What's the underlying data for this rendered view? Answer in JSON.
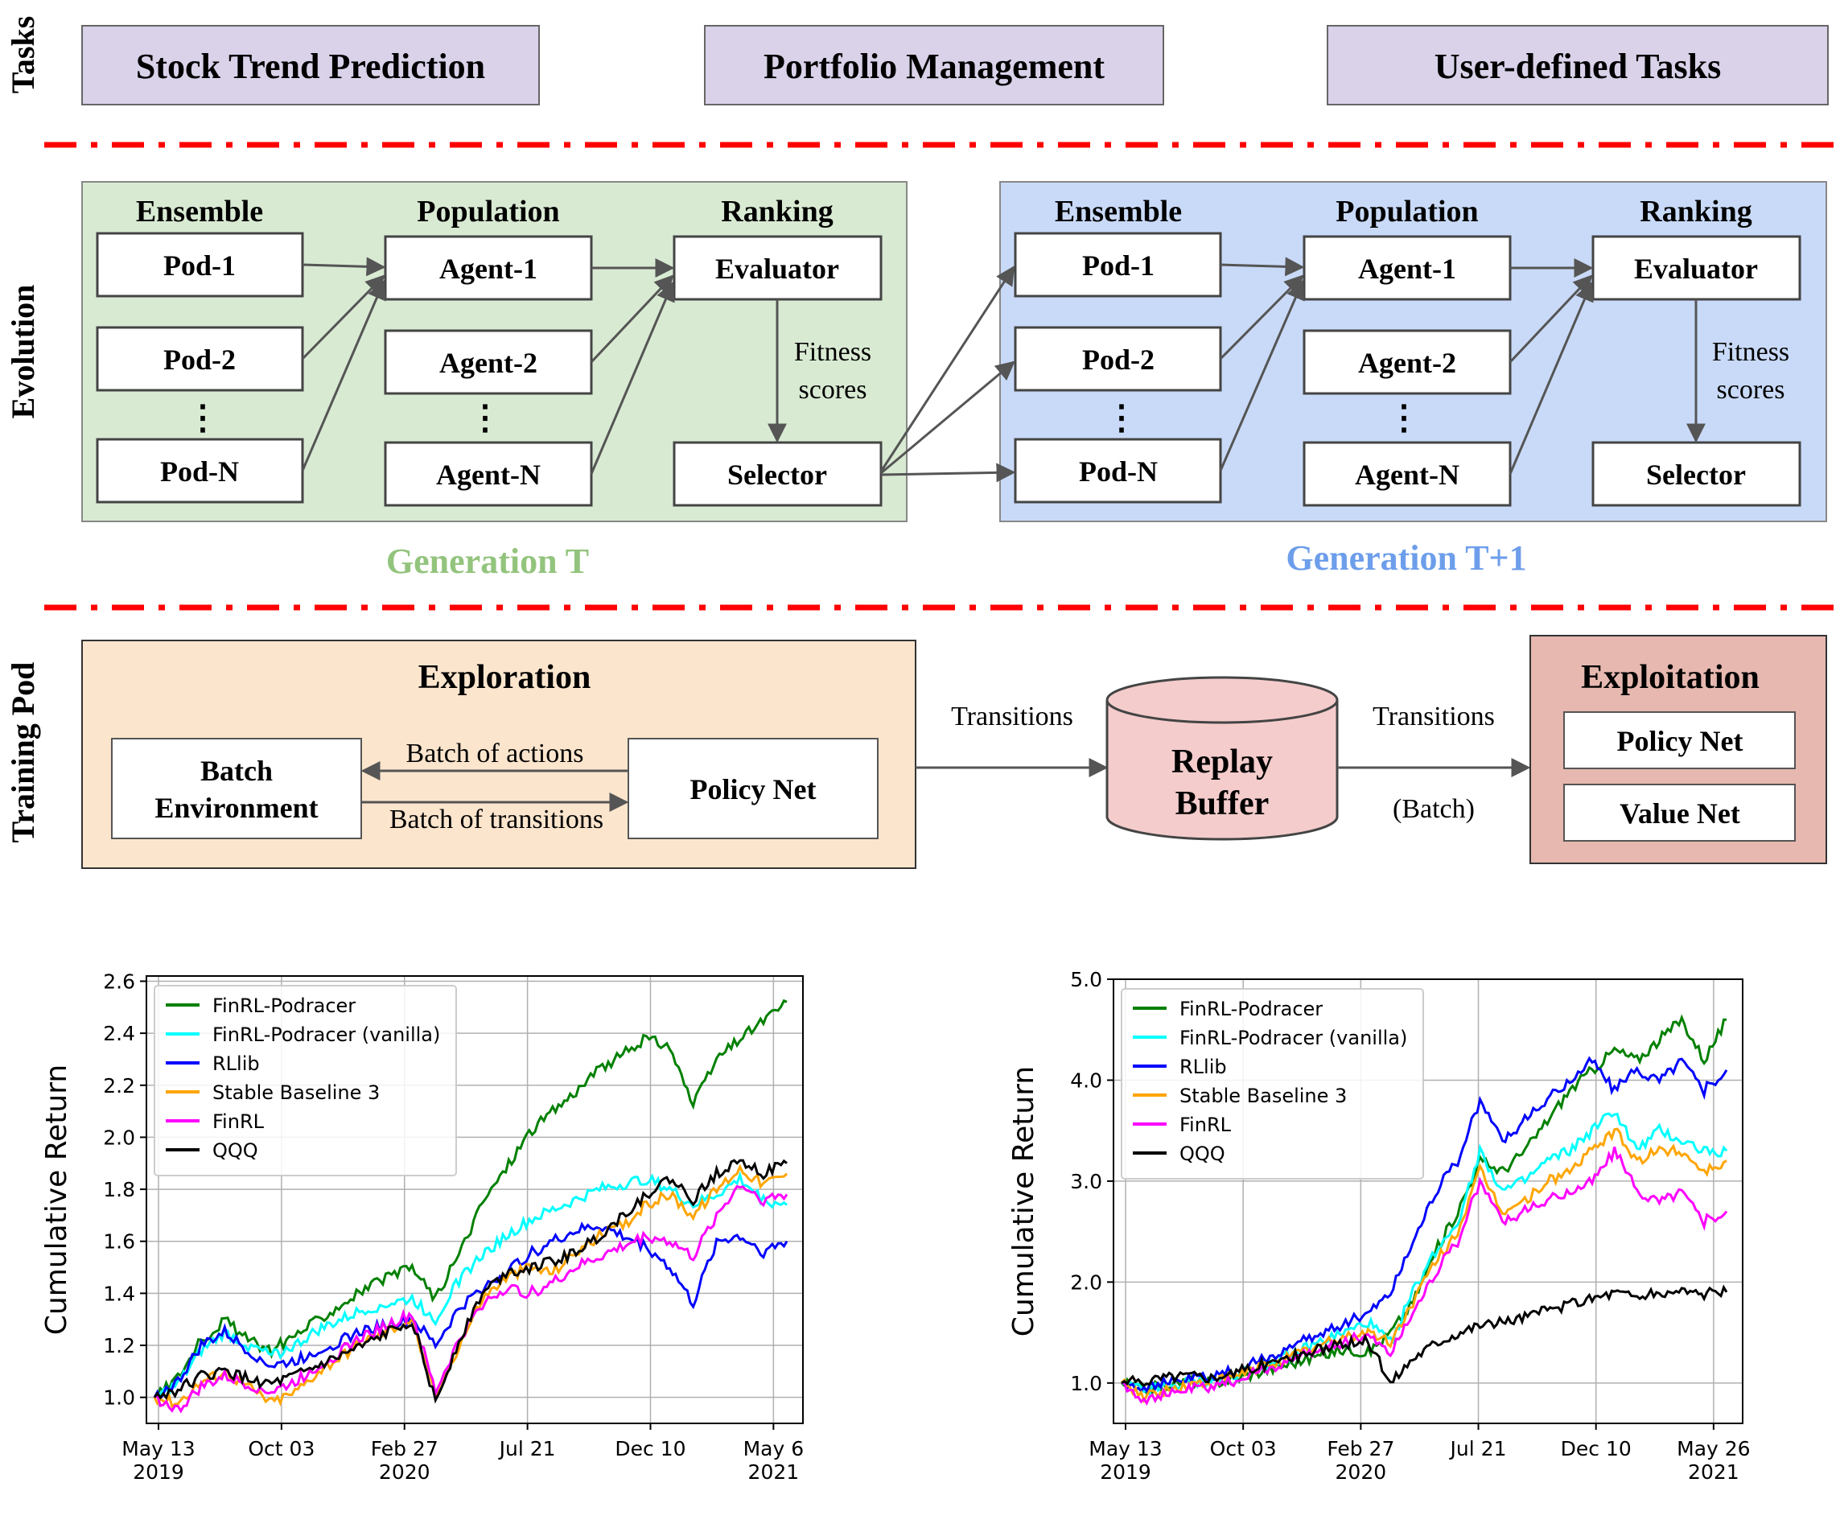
{
  "sections": {
    "tasks": "Tasks",
    "evolution": "Evolution",
    "training_pod": "Training Pod"
  },
  "tasks": {
    "stock": "Stock Trend Prediction",
    "portfolio": "Portfolio Management",
    "user": "User-defined Tasks"
  },
  "generation_t": {
    "label": "Generation T",
    "ensemble": "Ensemble",
    "population": "Population",
    "ranking": "Ranking",
    "pods": [
      "Pod-1",
      "Pod-2",
      "Pod-N"
    ],
    "agents": [
      "Agent-1",
      "Agent-2",
      "Agent-N"
    ],
    "evaluator": "Evaluator",
    "selector": "Selector",
    "fitness_1": "Fitness",
    "fitness_2": "scores",
    "ellipsis": "⋮"
  },
  "generation_t1": {
    "label": "Generation T+1",
    "ensemble": "Ensemble",
    "population": "Population",
    "ranking": "Ranking",
    "pods": [
      "Pod-1",
      "Pod-2",
      "Pod-N"
    ],
    "agents": [
      "Agent-1",
      "Agent-2",
      "Agent-N"
    ],
    "evaluator": "Evaluator",
    "selector": "Selector",
    "fitness_1": "Fitness",
    "fitness_2": "scores",
    "ellipsis": "⋮"
  },
  "training": {
    "exploration": "Exploration",
    "batch_env_1": "Batch",
    "batch_env_2": "Environment",
    "policy_net": "Policy Net",
    "batch_actions": "Batch of actions",
    "batch_transitions": "Batch of transitions",
    "transitions_left": "Transitions",
    "transitions_right": "Transitions",
    "batch_paren": "(Batch)",
    "replay_1": "Replay",
    "replay_2": "Buffer",
    "exploitation": "Exploitation",
    "exp_policy_net": "Policy Net",
    "value_net": "Value Net"
  },
  "colors": {
    "gen_t_fill": "#d9ead3",
    "gen_t_label": "#93c47d",
    "gen_t1_fill": "#c9daf8",
    "gen_t1_label": "#6d9eeb",
    "task_fill": "#d9d2e9",
    "exploration_fill": "#fce5cd",
    "replay_fill": "#f4cccc",
    "exploitation_fill": "#e6b8af",
    "divider": "#ff0000"
  },
  "chart_data": [
    {
      "type": "line",
      "ylabel": "Cumulative Return",
      "x_ticks": [
        "May 13\n2019",
        "Oct 03",
        "Feb 27\n2020",
        "Jul 21",
        "Dec 10",
        "May 6\n2021"
      ],
      "ylim": [
        0.9,
        2.62
      ],
      "y_ticks": [
        "1.0",
        "1.2",
        "1.4",
        "1.6",
        "1.8",
        "2.0",
        "2.2",
        "2.4",
        "2.6"
      ],
      "grid": true,
      "legend": "top-left",
      "series": [
        {
          "name": "FinRL-Podracer",
          "color": "#008000",
          "values": [
            1.0,
            1.08,
            1.22,
            1.3,
            1.22,
            1.18,
            1.24,
            1.3,
            1.36,
            1.42,
            1.46,
            1.5,
            1.38,
            1.55,
            1.75,
            1.88,
            2.02,
            2.1,
            2.18,
            2.26,
            2.32,
            2.38,
            2.35,
            2.12,
            2.3,
            2.38,
            2.45,
            2.52
          ]
        },
        {
          "name": "FinRL-Podracer (vanilla)",
          "color": "#00ffff",
          "values": [
            1.0,
            1.05,
            1.18,
            1.25,
            1.2,
            1.16,
            1.2,
            1.26,
            1.3,
            1.34,
            1.36,
            1.38,
            1.3,
            1.45,
            1.55,
            1.62,
            1.68,
            1.72,
            1.76,
            1.8,
            1.82,
            1.84,
            1.8,
            1.74,
            1.78,
            1.84,
            1.76,
            1.74
          ]
        },
        {
          "name": "RLlib",
          "color": "#0000ff",
          "values": [
            1.0,
            1.06,
            1.2,
            1.25,
            1.18,
            1.12,
            1.14,
            1.18,
            1.22,
            1.26,
            1.28,
            1.3,
            1.2,
            1.34,
            1.42,
            1.48,
            1.55,
            1.6,
            1.64,
            1.66,
            1.62,
            1.58,
            1.5,
            1.36,
            1.6,
            1.62,
            1.56,
            1.6
          ]
        },
        {
          "name": "Stable Baseline 3",
          "color": "#ffa500",
          "values": [
            1.0,
            0.98,
            1.06,
            1.1,
            1.04,
            0.98,
            1.02,
            1.1,
            1.16,
            1.22,
            1.26,
            1.3,
            1.0,
            1.2,
            1.38,
            1.46,
            1.5,
            1.48,
            1.56,
            1.62,
            1.66,
            1.74,
            1.78,
            1.7,
            1.8,
            1.88,
            1.82,
            1.86
          ]
        },
        {
          "name": "FinRL",
          "color": "#ff00ff",
          "values": [
            1.0,
            0.95,
            1.04,
            1.08,
            1.05,
            1.02,
            1.06,
            1.12,
            1.18,
            1.24,
            1.28,
            1.32,
            1.02,
            1.22,
            1.36,
            1.42,
            1.4,
            1.44,
            1.5,
            1.54,
            1.58,
            1.62,
            1.6,
            1.54,
            1.7,
            1.82,
            1.76,
            1.78
          ]
        },
        {
          "name": "QQQ",
          "color": "#000000",
          "values": [
            1.0,
            1.03,
            1.08,
            1.1,
            1.07,
            1.05,
            1.08,
            1.12,
            1.16,
            1.2,
            1.25,
            1.3,
            0.98,
            1.22,
            1.4,
            1.48,
            1.5,
            1.52,
            1.56,
            1.62,
            1.7,
            1.78,
            1.84,
            1.76,
            1.86,
            1.92,
            1.86,
            1.9
          ]
        }
      ]
    },
    {
      "type": "line",
      "ylabel": "Cumulative Return",
      "x_ticks": [
        "May 13\n2019",
        "Oct 03",
        "Feb 27\n2020",
        "Jul 21",
        "Dec 10",
        "May 26\n2021"
      ],
      "ylim": [
        0.6,
        5.0
      ],
      "y_ticks": [
        "1.0",
        "2.0",
        "3.0",
        "4.0",
        "5.0"
      ],
      "grid": true,
      "legend": "top-left",
      "series": [
        {
          "name": "FinRL-Podracer",
          "color": "#008000",
          "values": [
            1.0,
            0.94,
            0.98,
            1.02,
            1.0,
            1.04,
            1.1,
            1.16,
            1.22,
            1.28,
            1.34,
            1.3,
            1.5,
            1.8,
            2.3,
            2.7,
            3.2,
            3.1,
            3.3,
            3.6,
            3.9,
            4.1,
            4.3,
            4.2,
            4.4,
            4.6,
            4.2,
            4.6
          ]
        },
        {
          "name": "FinRL-Podracer (vanilla)",
          "color": "#00ffff",
          "values": [
            1.0,
            0.92,
            0.96,
            1.0,
            1.02,
            1.08,
            1.16,
            1.24,
            1.32,
            1.42,
            1.5,
            1.6,
            1.4,
            1.9,
            2.3,
            2.6,
            3.3,
            2.9,
            3.0,
            3.2,
            3.3,
            3.5,
            3.7,
            3.3,
            3.5,
            3.4,
            3.3,
            3.3
          ]
        },
        {
          "name": "RLlib",
          "color": "#0000ff",
          "values": [
            1.0,
            0.96,
            1.0,
            1.04,
            1.06,
            1.12,
            1.2,
            1.3,
            1.4,
            1.5,
            1.6,
            1.7,
            1.9,
            2.4,
            2.9,
            3.2,
            3.8,
            3.4,
            3.6,
            3.8,
            4.0,
            4.2,
            3.9,
            4.1,
            4.0,
            4.2,
            3.9,
            4.1
          ]
        },
        {
          "name": "Stable Baseline 3",
          "color": "#ffa500",
          "values": [
            1.0,
            0.88,
            0.92,
            0.98,
            1.0,
            1.06,
            1.14,
            1.22,
            1.3,
            1.38,
            1.46,
            1.5,
            1.4,
            1.8,
            2.2,
            2.5,
            3.1,
            2.7,
            2.8,
            3.0,
            3.1,
            3.3,
            3.5,
            3.2,
            3.3,
            3.3,
            3.1,
            3.2
          ]
        },
        {
          "name": "FinRL",
          "color": "#ff00ff",
          "values": [
            1.0,
            0.84,
            0.88,
            0.94,
            0.96,
            1.02,
            1.1,
            1.18,
            1.26,
            1.34,
            1.42,
            1.48,
            1.3,
            1.7,
            2.1,
            2.4,
            3.0,
            2.6,
            2.7,
            2.8,
            2.9,
            3.0,
            3.3,
            2.9,
            2.8,
            2.9,
            2.6,
            2.7
          ]
        },
        {
          "name": "QQQ",
          "color": "#000000",
          "values": [
            1.0,
            1.02,
            1.06,
            1.08,
            1.06,
            1.1,
            1.16,
            1.22,
            1.28,
            1.34,
            1.38,
            1.42,
            1.0,
            1.25,
            1.4,
            1.5,
            1.58,
            1.6,
            1.66,
            1.72,
            1.78,
            1.84,
            1.9,
            1.86,
            1.88,
            1.92,
            1.88,
            1.9
          ]
        }
      ]
    }
  ]
}
